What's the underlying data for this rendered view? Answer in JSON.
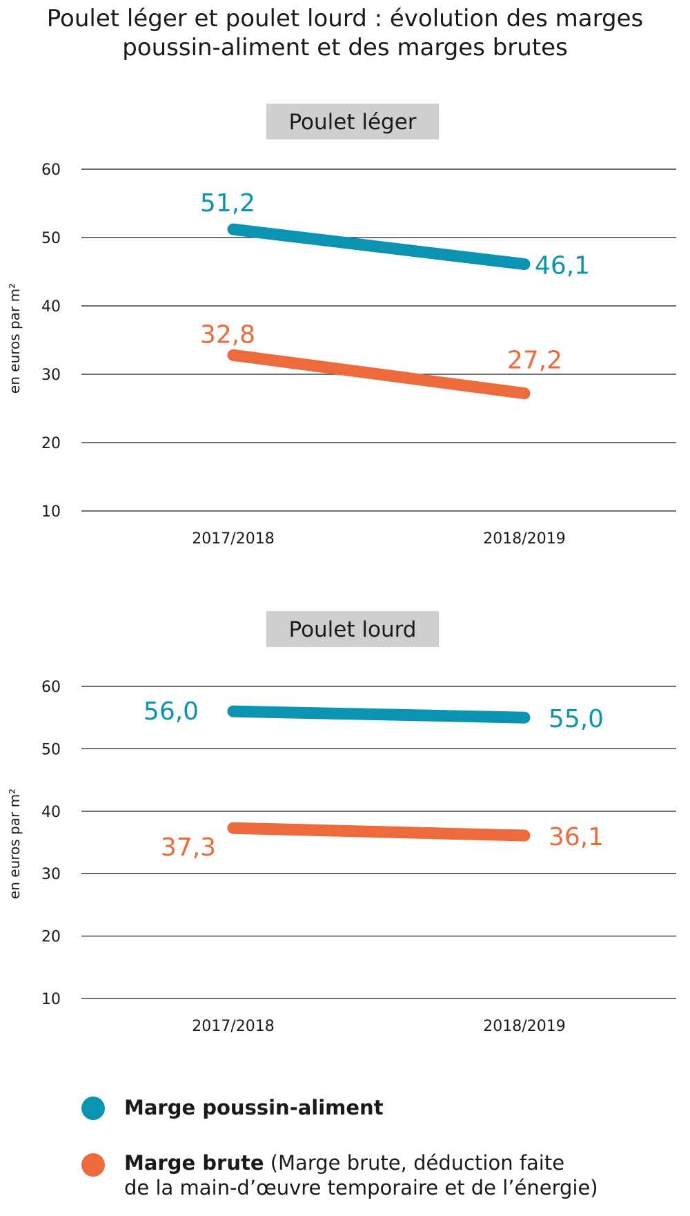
{
  "title": "Poulet léger et poulet lourd : évolution des marges poussin-aliment et des marges brutes",
  "colors": {
    "poussin_aliment": "#0a94b1",
    "marge_brute": "#ed6a3d",
    "panel_title_bg": "#cfcfcf"
  },
  "chart_data": [
    {
      "type": "line",
      "title": "Poulet léger",
      "ylabel": "en euros par m²",
      "xlabel": "",
      "categories": [
        "2017/2018",
        "2018/2019"
      ],
      "yticks": [
        10,
        20,
        30,
        40,
        50,
        60
      ],
      "ylim": [
        10,
        60
      ],
      "grid": true,
      "series": [
        {
          "name": "Marge poussin-aliment",
          "values": [
            51.2,
            46.1
          ],
          "labels": [
            "51,2",
            "46,1"
          ],
          "color": "#0a94b1"
        },
        {
          "name": "Marge brute",
          "values": [
            32.8,
            27.2
          ],
          "labels": [
            "32,8",
            "27,2"
          ],
          "color": "#ed6a3d"
        }
      ]
    },
    {
      "type": "line",
      "title": "Poulet lourd",
      "ylabel": "en euros par m²",
      "xlabel": "",
      "categories": [
        "2017/2018",
        "2018/2019"
      ],
      "yticks": [
        10,
        20,
        30,
        40,
        50,
        60
      ],
      "ylim": [
        10,
        60
      ],
      "grid": true,
      "series": [
        {
          "name": "Marge poussin-aliment",
          "values": [
            56.0,
            55.0
          ],
          "labels": [
            "56,0",
            "55,0"
          ],
          "color": "#0a94b1"
        },
        {
          "name": "Marge brute",
          "values": [
            37.3,
            36.1
          ],
          "labels": [
            "37,3",
            "36,1"
          ],
          "color": "#ed6a3d"
        }
      ]
    }
  ],
  "legend": {
    "items": [
      {
        "name": "Marge poussin-aliment",
        "note_line1": "",
        "note_line2": ""
      },
      {
        "name": "Marge brute",
        "note_line1": " (Marge brute, déduction faite",
        "note_line2": "de la main-d’œuvre temporaire et de l’énergie)"
      }
    ]
  }
}
